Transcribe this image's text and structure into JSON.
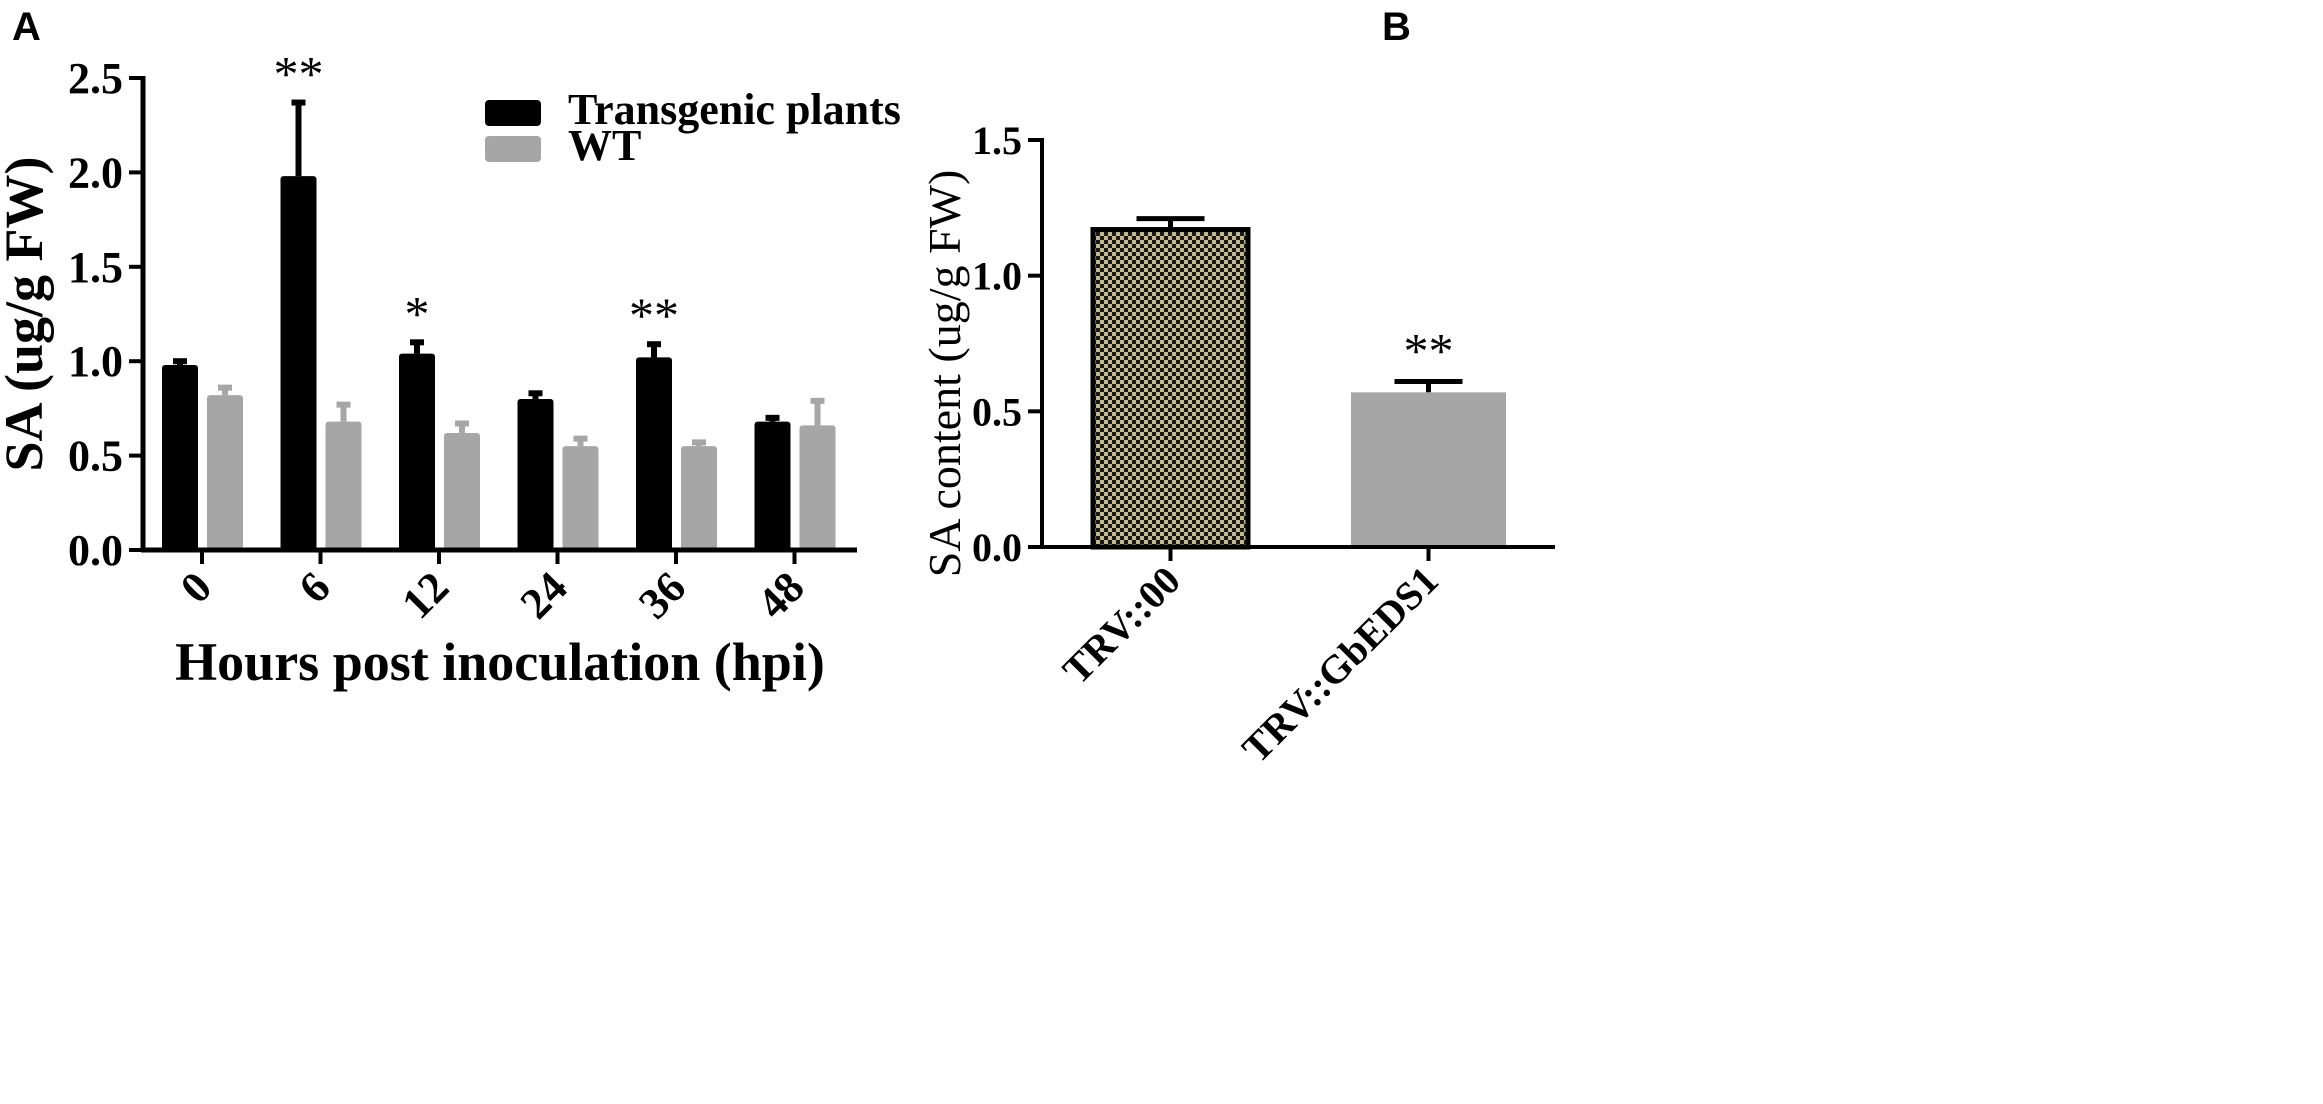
{
  "panels": {
    "a_label": "A",
    "b_label": "B"
  },
  "colors": {
    "transgenic": "#000000",
    "wt": "#a6a6a6",
    "trv00_fill": "#c2b98e",
    "trv00_pattern": "#1a1a1a",
    "gbeds1": "#a6a6a6"
  },
  "chart_data": [
    {
      "type": "bar",
      "panel": "A",
      "title": "",
      "xlabel": "Hours post inoculation (hpi)",
      "ylabel": "SA (ug/g FW)",
      "ylim": [
        0,
        2.5
      ],
      "yticks": [
        "0.0",
        "0.5",
        "1.0",
        "1.5",
        "2.0",
        "2.5"
      ],
      "categories": [
        "0",
        "6",
        "12",
        "24",
        "36",
        "48"
      ],
      "legend_position": "top-right",
      "series": [
        {
          "name": "Transgenic plants",
          "values": [
            0.98,
            1.98,
            1.04,
            0.8,
            1.02,
            0.68
          ],
          "errors": [
            0.02,
            0.39,
            0.06,
            0.03,
            0.07,
            0.02
          ]
        },
        {
          "name": "WT",
          "values": [
            0.82,
            0.68,
            0.62,
            0.55,
            0.55,
            0.66
          ],
          "errors": [
            0.04,
            0.09,
            0.05,
            0.04,
            0.02,
            0.13
          ]
        }
      ],
      "significance": [
        {
          "category": "6",
          "series": "Transgenic plants",
          "mark": "**"
        },
        {
          "category": "12",
          "series": "Transgenic plants",
          "mark": "*"
        },
        {
          "category": "36",
          "series": "Transgenic plants",
          "mark": "**"
        }
      ]
    },
    {
      "type": "bar",
      "panel": "B",
      "title": "",
      "xlabel": "",
      "ylabel": "SA content (ug/g FW)",
      "ylim": [
        0,
        1.5
      ],
      "yticks": [
        "0.0",
        "0.5",
        "1.0",
        "1.5"
      ],
      "categories": [
        "TRV::00",
        "TRV::GbEDS1"
      ],
      "values": [
        1.17,
        0.57
      ],
      "errors": [
        0.04,
        0.04
      ],
      "significance": [
        {
          "category": "TRV::GbEDS1",
          "mark": "**"
        }
      ]
    }
  ]
}
